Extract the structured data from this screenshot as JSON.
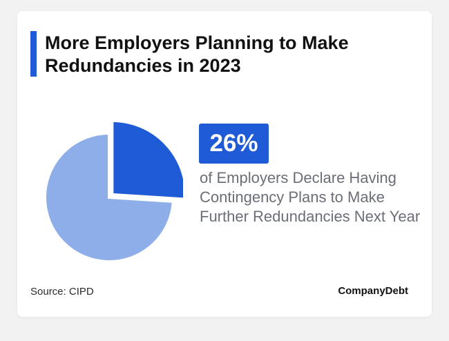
{
  "header": {
    "title": "More Employers Planning to Make Redundancies in 2023"
  },
  "stat": {
    "value": "26%",
    "description": "of Employers Declare Having Contingency Plans to Make Further Redundancies Next Year"
  },
  "footer": {
    "source": "Source: CIPD",
    "brand": "CompanyDebt"
  },
  "colors": {
    "accent": "#1f5bd6",
    "slice_highlight": "#1f5bd6",
    "slice_rest": "#8eaeea",
    "text_muted": "#6b6e78"
  },
  "chart_data": {
    "type": "pie",
    "slices": [
      {
        "value": 26,
        "color": "#1f5bd6",
        "exploded": true
      },
      {
        "value": 74,
        "color": "#8eaeea",
        "exploded": false
      }
    ]
  }
}
